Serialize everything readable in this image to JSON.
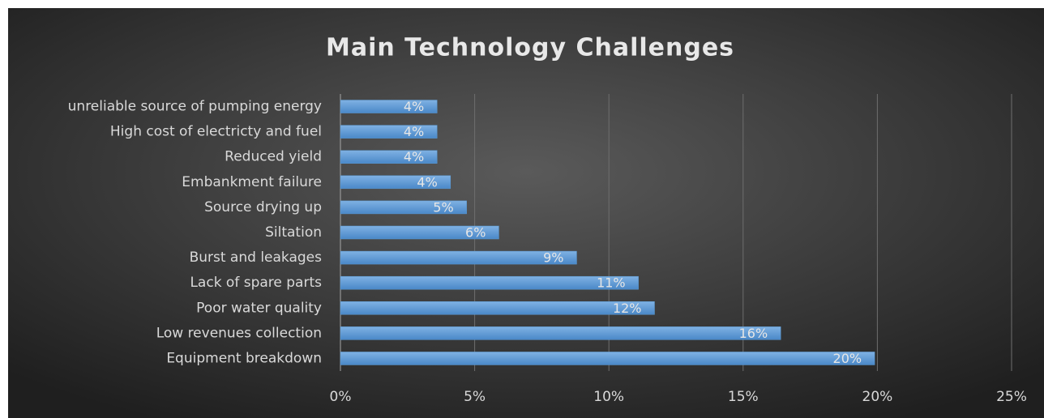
{
  "chart_data": {
    "type": "bar",
    "orientation": "horizontal",
    "title": "Main Technology Challenges",
    "categories": [
      "unreliable source of pumping  energy",
      "High cost of electricty and fuel",
      "Reduced yield",
      "Embankment failure ",
      "Source drying up",
      "Siltation",
      "Burst and leakages",
      "Lack of spare parts ",
      "Poor water quality",
      "Low revenues collection ",
      "Equipment breakdown"
    ],
    "values": [
      3.6,
      3.6,
      3.6,
      4.1,
      4.7,
      5.9,
      8.8,
      11.1,
      11.7,
      16.4,
      19.9
    ],
    "value_labels": [
      "4%",
      "4%",
      "4%",
      "4%",
      "5%",
      "6%",
      "9%",
      "11%",
      "12%",
      "16%",
      "20%"
    ],
    "color": "#5b9bd5",
    "xlim": [
      0,
      25
    ],
    "xticks": [
      {
        "value": 0,
        "label": "0%"
      },
      {
        "value": 5,
        "label": "5%"
      },
      {
        "value": 10,
        "label": "10%"
      },
      {
        "value": 15,
        "label": "15%"
      },
      {
        "value": 20,
        "label": "20%"
      },
      {
        "value": 25,
        "label": "25%"
      }
    ],
    "grid": true
  }
}
